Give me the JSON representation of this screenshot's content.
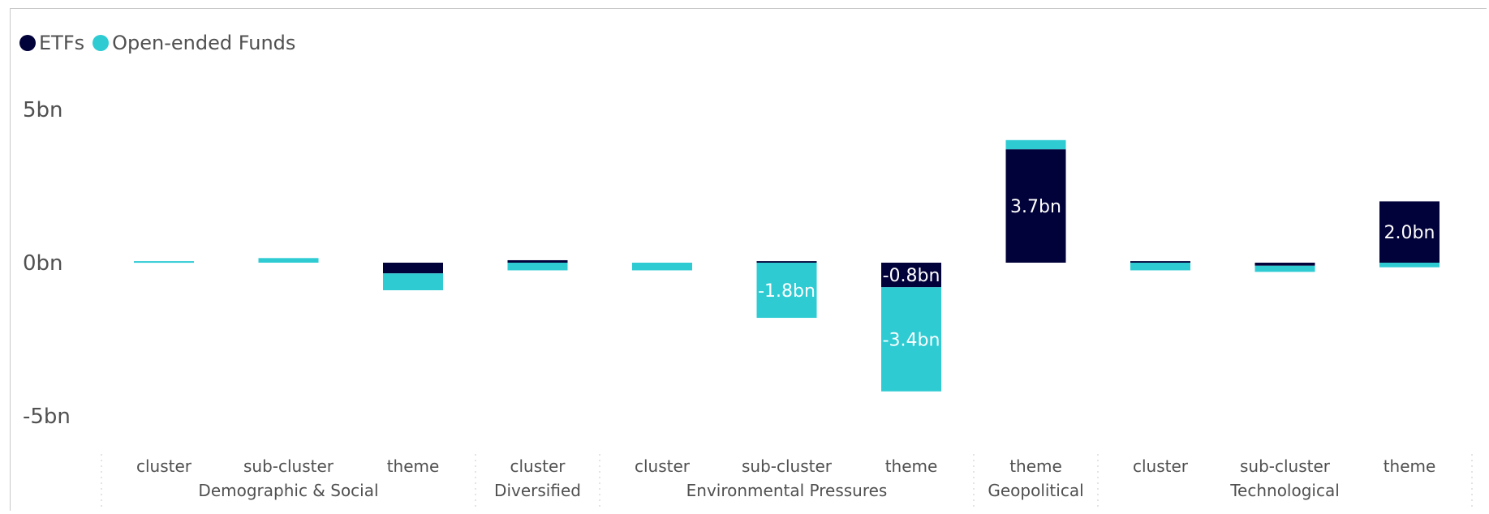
{
  "chart_data": {
    "type": "bar",
    "stacked": true,
    "legend_position": "top-left",
    "grid": false,
    "ylim": [
      -6,
      6
    ],
    "yticks": [
      {
        "value": 5,
        "label": "5bn"
      },
      {
        "value": 0,
        "label": "0bn"
      },
      {
        "value": -5,
        "label": "-5bn"
      }
    ],
    "groups": [
      {
        "name": "Demographic & Social",
        "start": 0,
        "count": 3
      },
      {
        "name": "Diversified",
        "start": 3,
        "count": 1
      },
      {
        "name": "Environmental Pressures",
        "start": 4,
        "count": 3
      },
      {
        "name": "Geopolitical",
        "start": 7,
        "count": 1
      },
      {
        "name": "Technological",
        "start": 8,
        "count": 3
      }
    ],
    "categories": [
      "cluster",
      "sub-cluster",
      "theme",
      "cluster",
      "cluster",
      "sub-cluster",
      "theme",
      "theme",
      "cluster",
      "sub-cluster",
      "theme"
    ],
    "series": [
      {
        "name": "ETFs",
        "color": "#02023a",
        "values": [
          0.0,
          0.0,
          -0.35,
          0.08,
          0.0,
          0.05,
          -0.8,
          3.7,
          0.05,
          -0.1,
          2.0
        ],
        "labels": [
          "",
          "",
          "",
          "",
          "",
          "",
          "-0.8bn",
          "3.7bn",
          "",
          "",
          "2.0bn"
        ]
      },
      {
        "name": "Open-ended Funds",
        "color": "#2ecbd3",
        "values": [
          0.05,
          0.15,
          -0.55,
          -0.25,
          -0.25,
          -1.8,
          -3.4,
          0.3,
          -0.25,
          -0.2,
          -0.15
        ],
        "labels": [
          "",
          "",
          "",
          "",
          "",
          "-1.8bn",
          "-3.4bn",
          "",
          "",
          "",
          ""
        ]
      }
    ]
  }
}
